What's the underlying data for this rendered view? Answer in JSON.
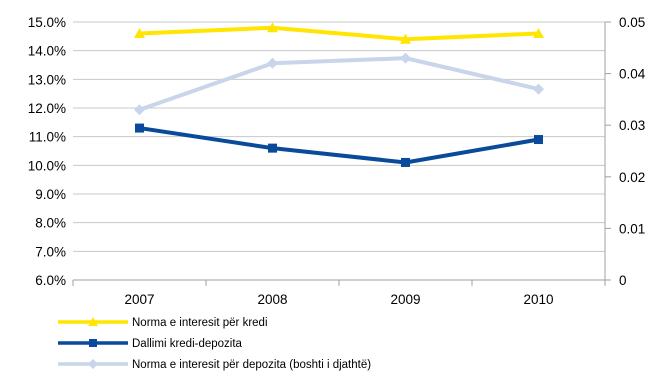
{
  "chart_data": {
    "type": "line",
    "categories": [
      "2007",
      "2008",
      "2009",
      "2010"
    ],
    "y_left": {
      "min": 6.0,
      "max": 15.0,
      "ticks": [
        6.0,
        7.0,
        8.0,
        9.0,
        10.0,
        11.0,
        12.0,
        13.0,
        14.0,
        15.0
      ],
      "tick_labels": [
        "6.0%",
        "7.0%",
        "8.0%",
        "9.0%",
        "10.0%",
        "11.0%",
        "12.0%",
        "13.0%",
        "14.0%",
        "15.0%"
      ]
    },
    "y_right": {
      "min": 0,
      "max": 0.05,
      "ticks": [
        0,
        0.01,
        0.02,
        0.03,
        0.04,
        0.05
      ],
      "tick_labels": [
        "0",
        "0.01",
        "0.02",
        "0.03",
        "0.04",
        "0.05"
      ]
    },
    "grid": true,
    "legend_position": "bottom-left",
    "series": [
      {
        "name": "Norma e interesit për kredi",
        "axis": "left",
        "color": "#FFE500",
        "marker": "triangle",
        "values": [
          14.6,
          14.8,
          14.4,
          14.6
        ]
      },
      {
        "name": "Dallimi kredi-depozita",
        "axis": "left",
        "color": "#0A4A9B",
        "marker": "square",
        "values": [
          11.3,
          10.6,
          10.1,
          10.9
        ]
      },
      {
        "name": "Norma e interesit për depozita (boshti i djathtë)",
        "axis": "right",
        "color": "#C9D5EA",
        "marker": "diamond",
        "values": [
          0.033,
          0.042,
          0.043,
          0.037
        ]
      }
    ]
  }
}
